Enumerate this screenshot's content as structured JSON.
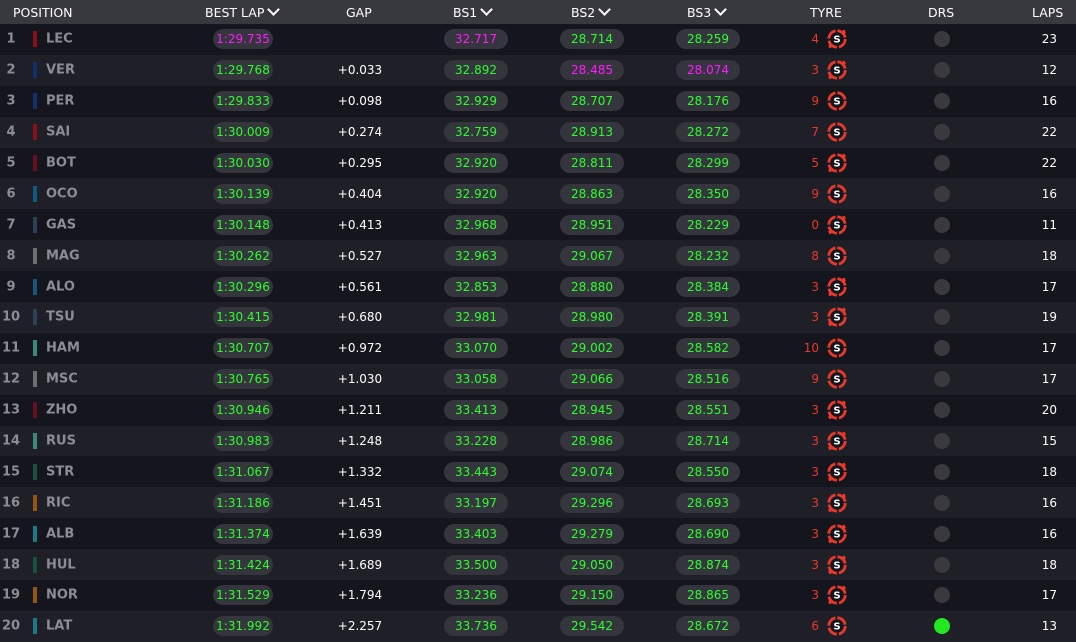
{
  "header": {
    "position": "POSITION",
    "best_lap": "BEST LAP",
    "gap": "GAP",
    "bs1": "BS1",
    "bs2": "BS2",
    "bs3": "BS3",
    "tyre": "TYRE",
    "drs": "DRS",
    "laps": "LAPS"
  },
  "colors": {
    "fastest": "#ff1aff",
    "personal": "#2bff2b",
    "tyre_soft": "#e8392a",
    "drs_on": "#22e822"
  },
  "rows": [
    {
      "pos": "1",
      "code": "LEC",
      "team": "#8b0f14",
      "best": "1:29.735",
      "gap": "",
      "bs1": "32.717",
      "bs2": "28.714",
      "bs3": "28.259",
      "tyre_laps": "4",
      "tyre": "S",
      "tyre_arrows": true,
      "drs": false,
      "laps": "23",
      "purple": [
        "best",
        "bs1"
      ]
    },
    {
      "pos": "2",
      "code": "VER",
      "team": "#10306e",
      "best": "1:29.768",
      "gap": "+0.033",
      "bs1": "32.892",
      "bs2": "28.485",
      "bs3": "28.074",
      "tyre_laps": "3",
      "tyre": "S",
      "tyre_arrows": true,
      "drs": false,
      "laps": "12",
      "purple": [
        "bs2",
        "bs3"
      ]
    },
    {
      "pos": "3",
      "code": "PER",
      "team": "#10306e",
      "best": "1:29.833",
      "gap": "+0.098",
      "bs1": "32.929",
      "bs2": "28.707",
      "bs3": "28.176",
      "tyre_laps": "9",
      "tyre": "S",
      "tyre_arrows": false,
      "drs": false,
      "laps": "16",
      "purple": []
    },
    {
      "pos": "4",
      "code": "SAI",
      "team": "#8b0f14",
      "best": "1:30.009",
      "gap": "+0.274",
      "bs1": "32.759",
      "bs2": "28.913",
      "bs3": "28.272",
      "tyre_laps": "7",
      "tyre": "S",
      "tyre_arrows": false,
      "drs": false,
      "laps": "22",
      "purple": []
    },
    {
      "pos": "5",
      "code": "BOT",
      "team": "#6a0f22",
      "best": "1:30.030",
      "gap": "+0.295",
      "bs1": "32.920",
      "bs2": "28.811",
      "bs3": "28.299",
      "tyre_laps": "5",
      "tyre": "S",
      "tyre_arrows": true,
      "drs": false,
      "laps": "22",
      "purple": []
    },
    {
      "pos": "6",
      "code": "OCO",
      "team": "#0e5a82",
      "best": "1:30.139",
      "gap": "+0.404",
      "bs1": "32.920",
      "bs2": "28.863",
      "bs3": "28.350",
      "tyre_laps": "9",
      "tyre": "S",
      "tyre_arrows": false,
      "drs": false,
      "laps": "16",
      "purple": []
    },
    {
      "pos": "7",
      "code": "GAS",
      "team": "#2b4256",
      "best": "1:30.148",
      "gap": "+0.413",
      "bs1": "32.968",
      "bs2": "28.951",
      "bs3": "28.229",
      "tyre_laps": "0",
      "tyre": "S",
      "tyre_arrows": true,
      "drs": false,
      "laps": "11",
      "purple": []
    },
    {
      "pos": "8",
      "code": "MAG",
      "team": "#6e6e72",
      "best": "1:30.262",
      "gap": "+0.527",
      "bs1": "32.963",
      "bs2": "29.067",
      "bs3": "28.232",
      "tyre_laps": "8",
      "tyre": "S",
      "tyre_arrows": false,
      "drs": false,
      "laps": "18",
      "purple": []
    },
    {
      "pos": "9",
      "code": "ALO",
      "team": "#0e5a82",
      "best": "1:30.296",
      "gap": "+0.561",
      "bs1": "32.853",
      "bs2": "28.880",
      "bs3": "28.384",
      "tyre_laps": "3",
      "tyre": "S",
      "tyre_arrows": true,
      "drs": false,
      "laps": "17",
      "purple": []
    },
    {
      "pos": "10",
      "code": "TSU",
      "team": "#2b4256",
      "best": "1:30.415",
      "gap": "+0.680",
      "bs1": "32.981",
      "bs2": "28.980",
      "bs3": "28.391",
      "tyre_laps": "3",
      "tyre": "S",
      "tyre_arrows": true,
      "drs": false,
      "laps": "19",
      "purple": []
    },
    {
      "pos": "11",
      "code": "HAM",
      "team": "#3a8a78",
      "best": "1:30.707",
      "gap": "+0.972",
      "bs1": "33.070",
      "bs2": "29.002",
      "bs3": "28.582",
      "tyre_laps": "10",
      "tyre": "S",
      "tyre_arrows": false,
      "drs": false,
      "laps": "17",
      "purple": []
    },
    {
      "pos": "12",
      "code": "MSC",
      "team": "#6e6e72",
      "best": "1:30.765",
      "gap": "+1.030",
      "bs1": "33.058",
      "bs2": "29.066",
      "bs3": "28.516",
      "tyre_laps": "9",
      "tyre": "S",
      "tyre_arrows": false,
      "drs": false,
      "laps": "17",
      "purple": []
    },
    {
      "pos": "13",
      "code": "ZHO",
      "team": "#6a0f22",
      "best": "1:30.946",
      "gap": "+1.211",
      "bs1": "33.413",
      "bs2": "28.945",
      "bs3": "28.551",
      "tyre_laps": "3",
      "tyre": "S",
      "tyre_arrows": true,
      "drs": false,
      "laps": "20",
      "purple": []
    },
    {
      "pos": "14",
      "code": "RUS",
      "team": "#3a8a78",
      "best": "1:30.983",
      "gap": "+1.248",
      "bs1": "33.228",
      "bs2": "28.986",
      "bs3": "28.714",
      "tyre_laps": "3",
      "tyre": "S",
      "tyre_arrows": true,
      "drs": false,
      "laps": "15",
      "purple": []
    },
    {
      "pos": "15",
      "code": "STR",
      "team": "#15533f",
      "best": "1:31.067",
      "gap": "+1.332",
      "bs1": "33.443",
      "bs2": "29.074",
      "bs3": "28.550",
      "tyre_laps": "3",
      "tyre": "S",
      "tyre_arrows": true,
      "drs": false,
      "laps": "18",
      "purple": []
    },
    {
      "pos": "16",
      "code": "RIC",
      "team": "#9a520f",
      "best": "1:31.186",
      "gap": "+1.451",
      "bs1": "33.197",
      "bs2": "29.296",
      "bs3": "28.693",
      "tyre_laps": "3",
      "tyre": "S",
      "tyre_arrows": true,
      "drs": false,
      "laps": "16",
      "purple": []
    },
    {
      "pos": "17",
      "code": "ALB",
      "team": "#1a7a8a",
      "best": "1:31.374",
      "gap": "+1.639",
      "bs1": "33.403",
      "bs2": "29.279",
      "bs3": "28.690",
      "tyre_laps": "3",
      "tyre": "S",
      "tyre_arrows": true,
      "drs": false,
      "laps": "16",
      "purple": []
    },
    {
      "pos": "18",
      "code": "HUL",
      "team": "#15533f",
      "best": "1:31.424",
      "gap": "+1.689",
      "bs1": "33.500",
      "bs2": "29.050",
      "bs3": "28.874",
      "tyre_laps": "3",
      "tyre": "S",
      "tyre_arrows": true,
      "drs": false,
      "laps": "18",
      "purple": []
    },
    {
      "pos": "19",
      "code": "NOR",
      "team": "#9a520f",
      "best": "1:31.529",
      "gap": "+1.794",
      "bs1": "33.236",
      "bs2": "29.150",
      "bs3": "28.865",
      "tyre_laps": "3",
      "tyre": "S",
      "tyre_arrows": true,
      "drs": false,
      "laps": "17",
      "purple": []
    },
    {
      "pos": "20",
      "code": "LAT",
      "team": "#1a7a8a",
      "best": "1:31.992",
      "gap": "+2.257",
      "bs1": "33.736",
      "bs2": "29.542",
      "bs3": "28.672",
      "tyre_laps": "6",
      "tyre": "S",
      "tyre_arrows": false,
      "drs": true,
      "laps": "13",
      "purple": []
    }
  ]
}
